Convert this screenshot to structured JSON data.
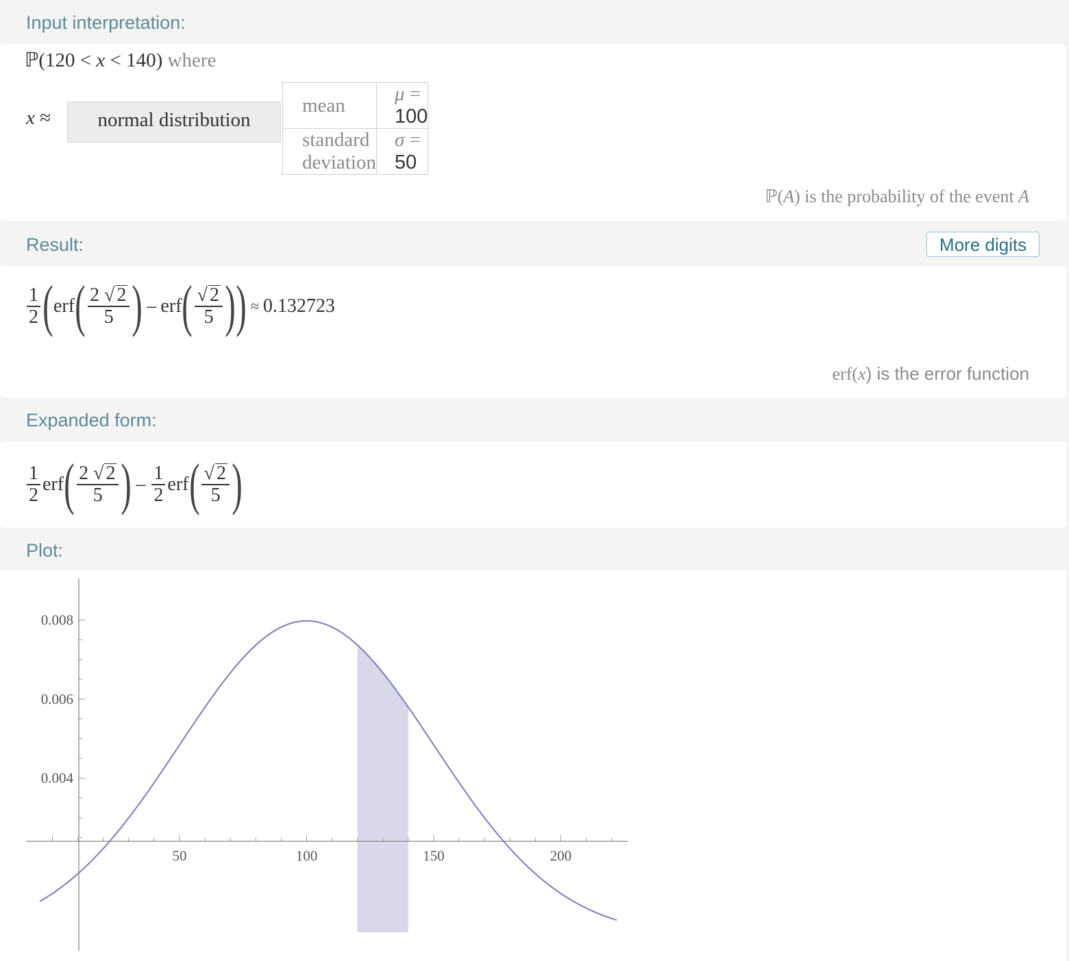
{
  "pods": {
    "input": {
      "title": "Input interpretation:"
    },
    "result": {
      "title": "Result:"
    },
    "expanded": {
      "title": "Expanded form:"
    },
    "plot": {
      "title": "Plot:"
    }
  },
  "input": {
    "prob_prefix": "ℙ(120 < ",
    "prob_var": "x",
    "prob_suffix": " < 140)",
    "where": "where",
    "x_var": "x",
    "approx": " ≈",
    "distribution": "normal distribution",
    "params": [
      {
        "name": "mean",
        "symbol": "μ",
        "eq": " = ",
        "value": "100"
      },
      {
        "name": "standard deviation",
        "symbol": "σ",
        "eq": " = ",
        "value": "50"
      }
    ],
    "footnote_prefix": "ℙ(",
    "footnote_var": "A",
    "footnote_mid": ") is the probability of the event ",
    "footnote_var2": "A"
  },
  "result": {
    "more_digits": "More digits",
    "half_num": "1",
    "half_den": "2",
    "erf": "erf",
    "a_num_coef": "2 ",
    "a_num_rad": "2",
    "a_den": "5",
    "minus": "–",
    "b_num_rad": "2",
    "b_den": "5",
    "approx_sign": "≈",
    "value": "0.132723",
    "footnote_fn": "erf(",
    "footnote_var": "x",
    "footnote_rest": ") is the error function"
  },
  "expanded": {
    "half_num": "1",
    "half_den": "2",
    "erf": "erf",
    "a_num_coef": "2 ",
    "a_num_rad": "2",
    "a_den": "5",
    "minus": "–",
    "b_num_rad": "2",
    "b_den": "5"
  },
  "chart_data": {
    "type": "area",
    "function": "normal pdf",
    "mean": 100,
    "sd": 50,
    "shaded_range": [
      120,
      140
    ],
    "xlim": [
      -5,
      222
    ],
    "ylim": [
      0.0001,
      0.0086
    ],
    "x_ticks": [
      50,
      100,
      150,
      200
    ],
    "x_tick_labels": [
      "50",
      "100",
      "150",
      "200"
    ],
    "y_ticks": [
      0.004,
      0.006,
      0.008
    ],
    "y_tick_labels": [
      "0.004",
      "0.006",
      "0.008"
    ],
    "curve_color": "#7b7bbf",
    "fill_color": "#d8d8ea",
    "grid": false
  }
}
